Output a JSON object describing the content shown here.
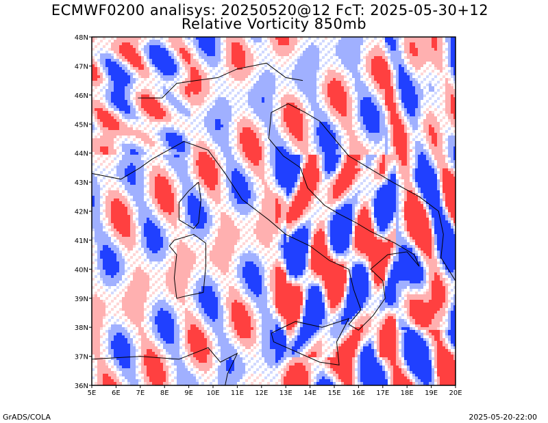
{
  "title_line1": "ECMWF0200 analisys: 20250520@12 FcT: 2025-05-30+12",
  "title_line2": "Relative Vorticity 850mb",
  "footer_left": "GrADS/COLA",
  "footer_right": "2025-05-20-22:00",
  "map": {
    "lon_ticks": [
      "5E",
      "6E",
      "7E",
      "8E",
      "9E",
      "10E",
      "11E",
      "12E",
      "13E",
      "14E",
      "15E",
      "16E",
      "17E",
      "18E",
      "19E",
      "20E"
    ],
    "lat_ticks": [
      "36N",
      "37N",
      "38N",
      "39N",
      "40N",
      "41N",
      "42N",
      "43N",
      "44N",
      "45N",
      "46N",
      "47N",
      "48N"
    ],
    "lon_range": [
      5,
      20
    ],
    "lat_range": [
      36,
      48
    ],
    "colors": {
      "positive": "#ff4040",
      "positive_light": "#ffb0b0",
      "negative": "#2040ff",
      "negative_light": "#a0b0ff",
      "coastline": "#000000"
    }
  }
}
